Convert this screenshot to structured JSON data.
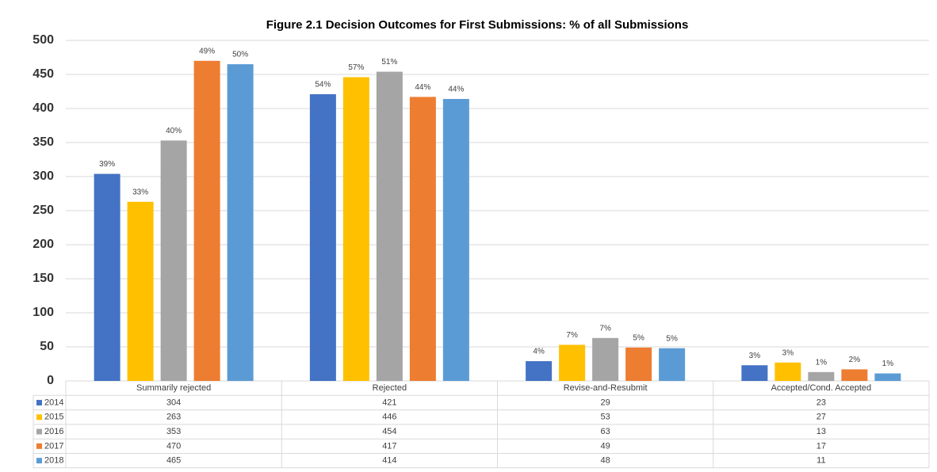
{
  "chart_data": {
    "type": "bar",
    "title": "Figure 2.1 Decision Outcomes for First Submissions: % of all Submissions",
    "categories": [
      "Summarily rejected",
      "Rejected",
      "Revise-and-Resubmit",
      "Accepted/Cond. Accepted"
    ],
    "series": [
      {
        "name": "2014",
        "color": "#4472c4",
        "values": [
          304,
          421,
          29,
          23
        ],
        "percent_labels": [
          "39%",
          "54%",
          "4%",
          "3%"
        ]
      },
      {
        "name": "2015",
        "color": "#ffc000",
        "values": [
          263,
          446,
          53,
          27
        ],
        "percent_labels": [
          "33%",
          "57%",
          "7%",
          "3%"
        ]
      },
      {
        "name": "2016",
        "color": "#a5a5a5",
        "values": [
          353,
          454,
          63,
          13
        ],
        "percent_labels": [
          "40%",
          "51%",
          "7%",
          "1%"
        ]
      },
      {
        "name": "2017",
        "color": "#ed7d31",
        "values": [
          470,
          417,
          49,
          17
        ],
        "percent_labels": [
          "49%",
          "44%",
          "5%",
          "2%"
        ]
      },
      {
        "name": "2018",
        "color": "#5b9bd5",
        "values": [
          465,
          414,
          48,
          11
        ],
        "percent_labels": [
          "50%",
          "44%",
          "5%",
          "1%"
        ]
      }
    ],
    "ylim": [
      0,
      500
    ],
    "yticks": [
      0,
      50,
      100,
      150,
      200,
      250,
      300,
      350,
      400,
      450,
      500
    ],
    "grid": true,
    "legend": "table"
  }
}
